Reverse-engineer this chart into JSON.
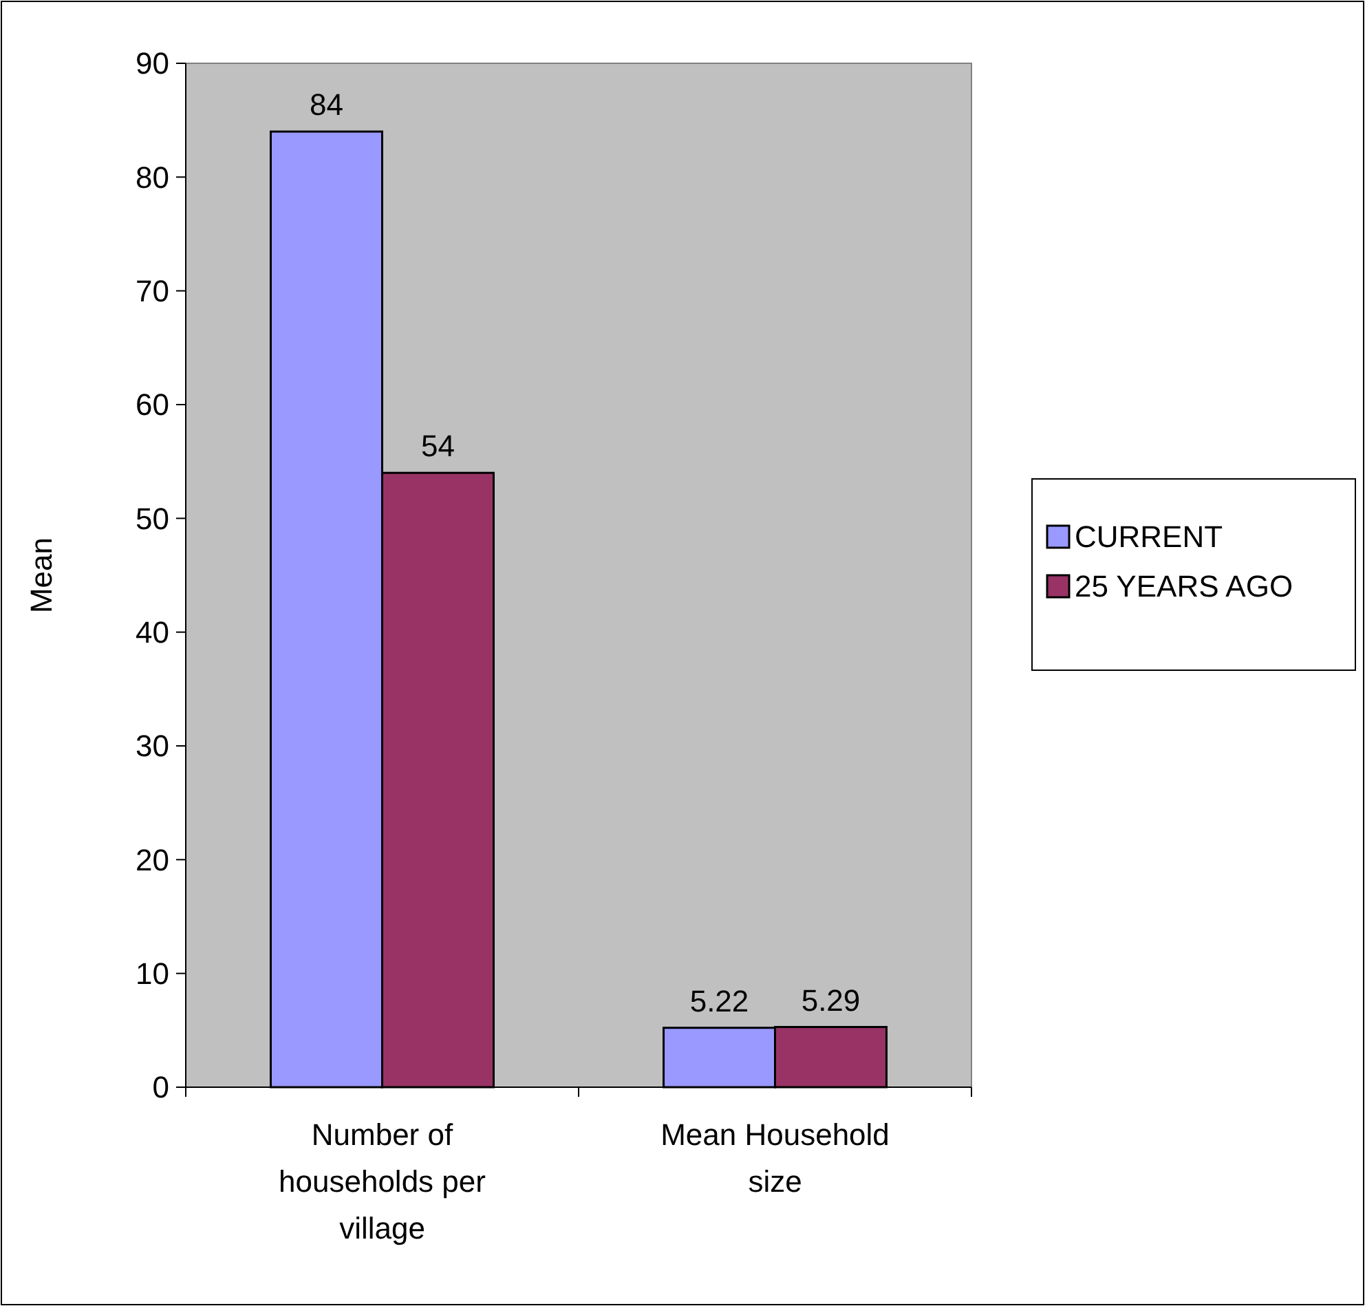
{
  "chart_data": {
    "type": "bar",
    "ylabel": "Mean",
    "categories": [
      "Number of households per village",
      "Mean Household size"
    ],
    "series": [
      {
        "name": "CURRENT",
        "color": "#9999ff",
        "values": [
          84,
          5.22
        ]
      },
      {
        "name": "25 YEARS AGO",
        "color": "#993366",
        "values": [
          54,
          5.29
        ]
      }
    ],
    "ylim": [
      0,
      90
    ],
    "yticks": [
      0,
      10,
      20,
      30,
      40,
      50,
      60,
      70,
      80,
      90
    ],
    "grid": false,
    "legend": "right",
    "data_labels": true
  }
}
